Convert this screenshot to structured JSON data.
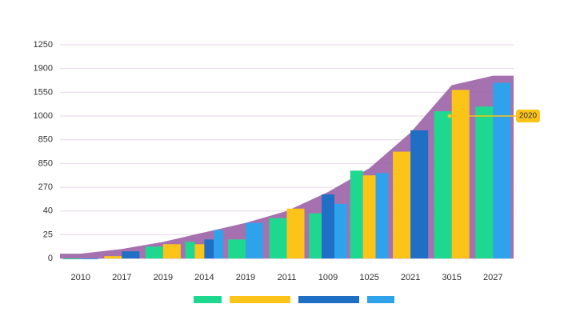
{
  "chart_data": {
    "type": "bar",
    "categories": [
      "2010",
      "2017",
      "2019",
      "2014",
      "2019",
      "2011",
      "1009",
      "1025",
      "2021",
      "3015",
      "2027"
    ],
    "ylim": [
      -0.3,
      9
    ],
    "yticks": [
      {
        "value": 0,
        "label": "0"
      },
      {
        "value": 1,
        "label": "25"
      },
      {
        "value": 2,
        "label": "40"
      },
      {
        "value": 3,
        "label": "270"
      },
      {
        "value": 4,
        "label": "850"
      },
      {
        "value": 5,
        "label": "850"
      },
      {
        "value": 6,
        "label": "1000"
      },
      {
        "value": 7,
        "label": "1550"
      },
      {
        "value": 8,
        "label": "1900"
      },
      {
        "value": 9,
        "label": "1250"
      }
    ],
    "grid": true,
    "area": {
      "color": "#9c62a6",
      "values": [
        0.2,
        0.4,
        0.7,
        1.1,
        1.5,
        2.0,
        2.8,
        3.8,
        5.3,
        7.3,
        7.7
      ]
    },
    "series": [
      {
        "color": "#1fd890",
        "values": [
          0,
          null,
          0.5,
          0.7,
          0.8,
          1.7,
          1.9,
          3.7,
          null,
          6.2,
          6.4
        ]
      },
      {
        "color": "#fcc419",
        "values": [
          null,
          0.1,
          0.6,
          0.6,
          null,
          2.1,
          null,
          3.5,
          4.5,
          7.1,
          null
        ]
      },
      {
        "color": "#1f6fc4",
        "values": [
          null,
          0.3,
          null,
          0.8,
          null,
          null,
          2.7,
          null,
          5.4,
          null,
          null
        ]
      },
      {
        "color": "#2ea3ec",
        "values": [
          0,
          null,
          null,
          1.2,
          1.5,
          null,
          2.3,
          3.6,
          null,
          null,
          7.4
        ]
      }
    ],
    "annotation": "2020"
  }
}
